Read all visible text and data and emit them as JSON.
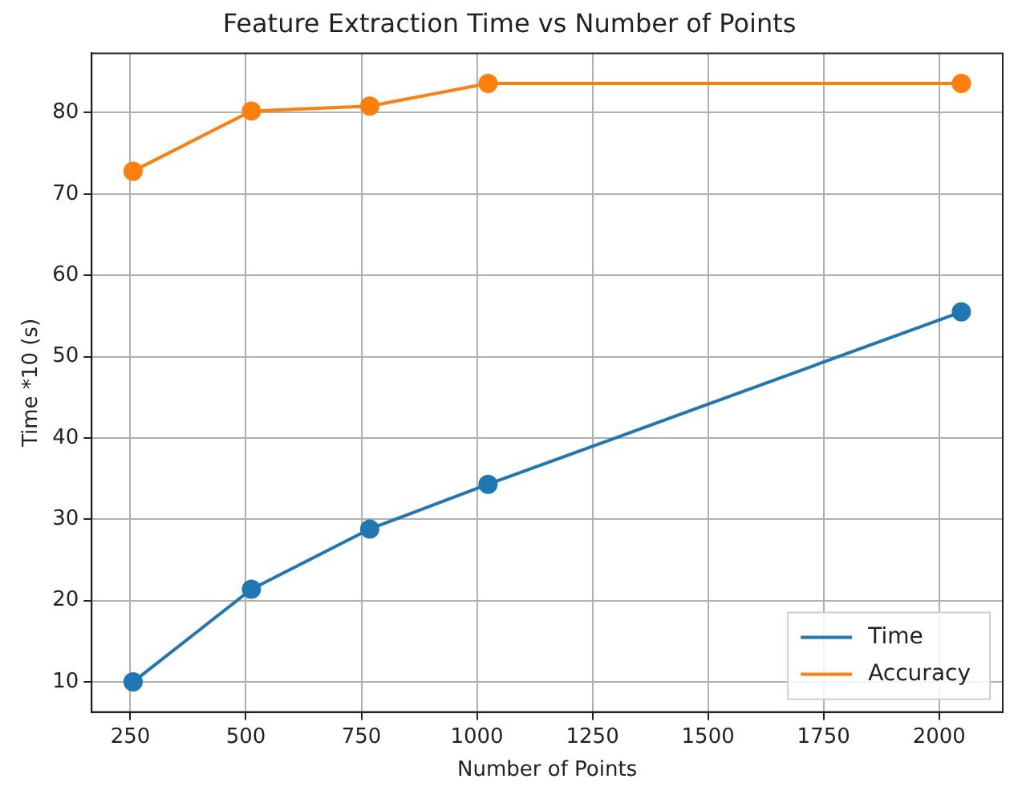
{
  "chart_data": {
    "type": "line",
    "title": "Feature Extraction Time vs Number of Points",
    "xlabel": "Number of Points",
    "ylabel": "Time *10 (s)",
    "x": [
      256,
      512,
      768,
      1024,
      2048
    ],
    "series": [
      {
        "name": "Time",
        "color": "#1f77b4",
        "values": [
          10,
          21.4,
          28.8,
          34.3,
          55.5
        ]
      },
      {
        "name": "Accuracy",
        "color": "#ff7f0e",
        "values": [
          72.8,
          80.2,
          80.8,
          83.6,
          83.6
        ]
      }
    ],
    "xlim": [
      166.4,
      2137.6
    ],
    "xticks": [
      250,
      500,
      750,
      1000,
      1250,
      1500,
      1750,
      2000
    ],
    "ylim": [
      6.3,
      87.3
    ],
    "yticks": [
      10,
      20,
      30,
      40,
      50,
      60,
      70,
      80
    ],
    "grid": true,
    "legend": "bottom right",
    "marker": "circle",
    "line_style": "solid"
  }
}
